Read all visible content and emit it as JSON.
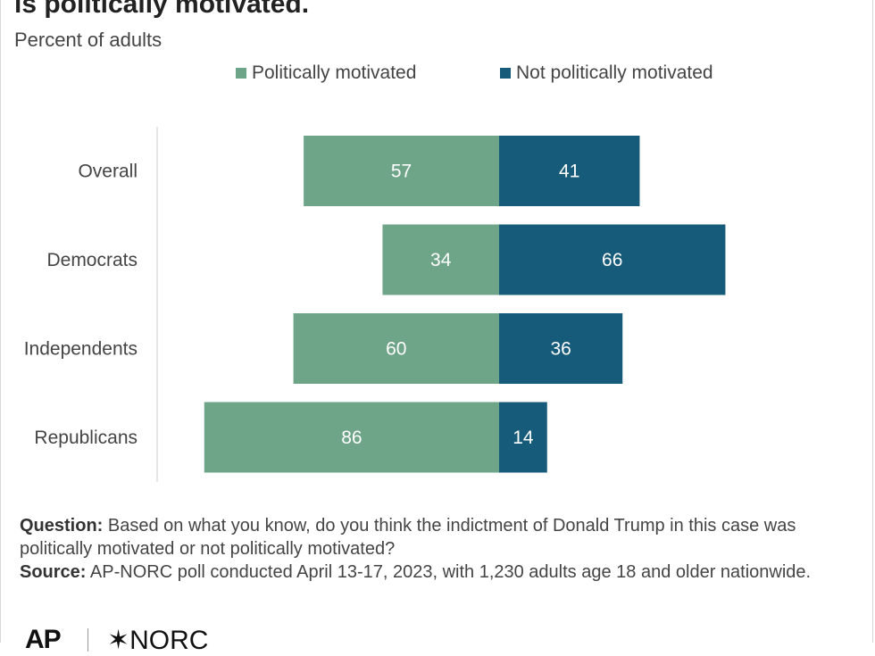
{
  "header": {
    "title": "is politically motivated.",
    "subtitle": "Percent of adults"
  },
  "colors": {
    "politically_motivated": "#6ea588",
    "not_politically_motivated": "#175b7b",
    "axis": "#cccccc"
  },
  "chart_data": {
    "type": "bar",
    "orientation": "horizontal-diverging",
    "categories": [
      "Overall",
      "Democrats",
      "Independents",
      "Republicans"
    ],
    "series": [
      {
        "name": "Politically motivated",
        "values": [
          57,
          34,
          60,
          86
        ]
      },
      {
        "name": "Not politically motivated",
        "values": [
          41,
          66,
          36,
          14
        ]
      }
    ],
    "legend_position": "top",
    "grid": false
  },
  "notes": {
    "question_label": "Question:",
    "question_text": " Based on what you know, do you think the indictment of Donald Trump in this case was politically motivated or not politically motivated?",
    "source_label": "Source:",
    "source_text": " AP-NORC poll conducted April 13-17, 2023, with 1,230 adults age 18 and older nationwide."
  },
  "logos": {
    "ap": "AP",
    "norc": "NORC"
  }
}
